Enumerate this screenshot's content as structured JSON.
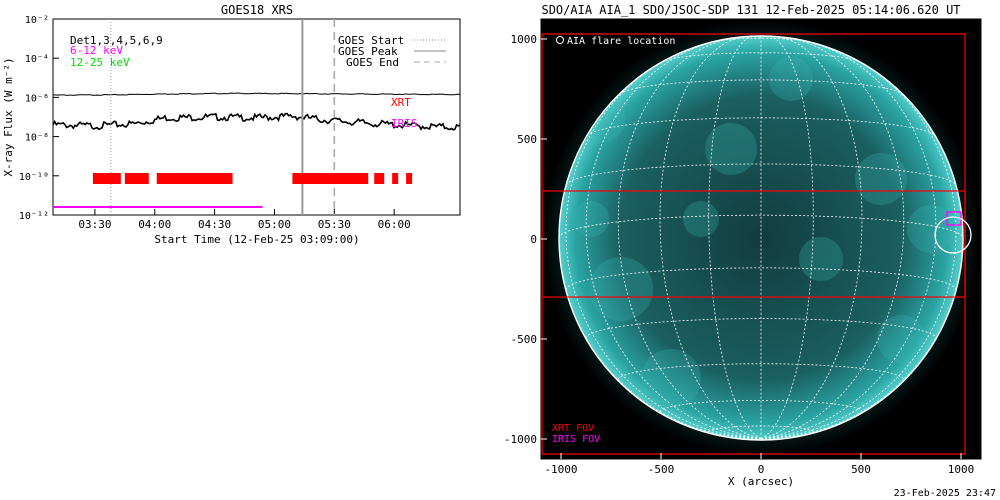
{
  "left_chart": {
    "title": "GOES18 XRS",
    "ylabel": "X-ray Flux (W m⁻²)",
    "xlabel": "Start Time (12-Feb-25 03:09:00)",
    "y_ticks": [
      {
        "label": "10⁻²",
        "exp": -2
      },
      {
        "label": "10⁻⁴",
        "exp": -4
      },
      {
        "label": "10⁻⁶",
        "exp": -6
      },
      {
        "label": "10⁻⁸",
        "exp": -8
      },
      {
        "label": "10⁻¹⁰",
        "exp": -10
      },
      {
        "label": "10⁻¹²",
        "exp": -12
      }
    ],
    "x_ticks": [
      "03:30",
      "04:00",
      "04:30",
      "05:00",
      "05:30",
      "06:00"
    ],
    "annotations": {
      "det": "Det1,3,4,5,6,9",
      "band1": "6-12 keV",
      "band2": "12-25 keV",
      "xrt": "XRT",
      "iris": "IRIS"
    },
    "legend": [
      {
        "label": "GOES Start",
        "style": "dotted"
      },
      {
        "label": "GOES Peak",
        "style": "solid"
      },
      {
        "label": "GOES End",
        "style": "dashed"
      }
    ],
    "colors": {
      "xrt": "#ff0000",
      "iris": "#ff00ff",
      "band1": "#ff00ff",
      "band2": "#00ff00"
    }
  },
  "chart_data": [
    {
      "type": "line",
      "title": "GOES18 XRS",
      "xlabel": "Start Time (12-Feb-25 03:09:00)",
      "ylabel": "X-ray Flux (W m-2)",
      "y_scale": "log",
      "ylim": [
        1e-12,
        0.01
      ],
      "xlim": [
        "03:09",
        "06:33"
      ],
      "grid": false,
      "legend_position": "top-right",
      "series": [
        {
          "name": "",
          "x": [
            "03:09",
            "03:40",
            "04:05",
            "04:40",
            "05:10",
            "05:35",
            "06:00",
            "06:33"
          ],
          "y": [
            1.3e-06,
            1.35e-06,
            1.5e-06,
            1.6e-06,
            1.55e-06,
            1.5e-06,
            1.45e-06,
            1.4e-06
          ]
        },
        {
          "name": "",
          "x": [
            "03:09",
            "03:30",
            "03:50",
            "04:05",
            "04:30",
            "04:50",
            "05:10",
            "05:25",
            "05:45",
            "06:00",
            "06:20",
            "06:33"
          ],
          "y": [
            4e-08,
            3.5e-08,
            4.5e-08,
            9e-08,
            1e-07,
            9e-08,
            1.1e-07,
            7e-08,
            5e-08,
            4e-08,
            3.2e-08,
            3e-08
          ]
        }
      ],
      "events": {
        "goes_start": "03:38",
        "goes_peak": "05:14",
        "goes_end": "05:30"
      },
      "xrt_intervals": [
        [
          "03:29",
          "03:43"
        ],
        [
          "03:45",
          "03:57"
        ],
        [
          "04:01",
          "04:39"
        ],
        [
          "05:09",
          "05:47"
        ],
        [
          "05:50",
          "05:55"
        ],
        [
          "05:59",
          "06:02"
        ],
        [
          "06:06",
          "06:09"
        ]
      ],
      "iris_interval": [
        "03:09",
        "04:54"
      ]
    },
    {
      "type": "scatter",
      "title": "SDO/AIA AIA_1 SDO/JSOC-SDP 131 12-Feb-2025 05:14:06.620 UT",
      "xlabel": "X (arcsec)",
      "ylabel": "",
      "xlim": [
        -1100,
        1100
      ],
      "ylim": [
        -1100,
        1100
      ],
      "x_ticks": [
        -1000,
        -500,
        0,
        500,
        1000
      ],
      "y_ticks": [
        -1000,
        -500,
        0,
        500,
        1000
      ],
      "legend": "AIA flare location",
      "flare_location": {
        "x": 960,
        "y": 20
      },
      "xrt_fov": [
        [
          -1095,
          -1075,
          1020,
          1025
        ],
        [
          -1095,
          -290,
          1020,
          240
        ]
      ],
      "iris_fov": [
        930,
        70,
        1000,
        135
      ]
    }
  ],
  "right_chart": {
    "title": "SDO/AIA AIA_1 SDO/JSOC-SDP 131 12-Feb-2025 05:14:06.620 UT",
    "xlabel": "X (arcsec)",
    "x_ticks": [
      "-1000",
      "-500",
      "0",
      "500",
      "1000"
    ],
    "y_ticks": [
      "1000",
      "500",
      "0",
      "-500",
      "-1000"
    ],
    "legend_label": "AIA flare location",
    "xrt_fov_label": "XRT FOV",
    "iris_fov_label": "IRIS FOV",
    "colors": {
      "disk": "#1f8d8d",
      "xrt": "#ff0000",
      "iris": "#ff00ff"
    }
  },
  "footer": {
    "timestamp": "23-Feb-2025 23:47"
  }
}
